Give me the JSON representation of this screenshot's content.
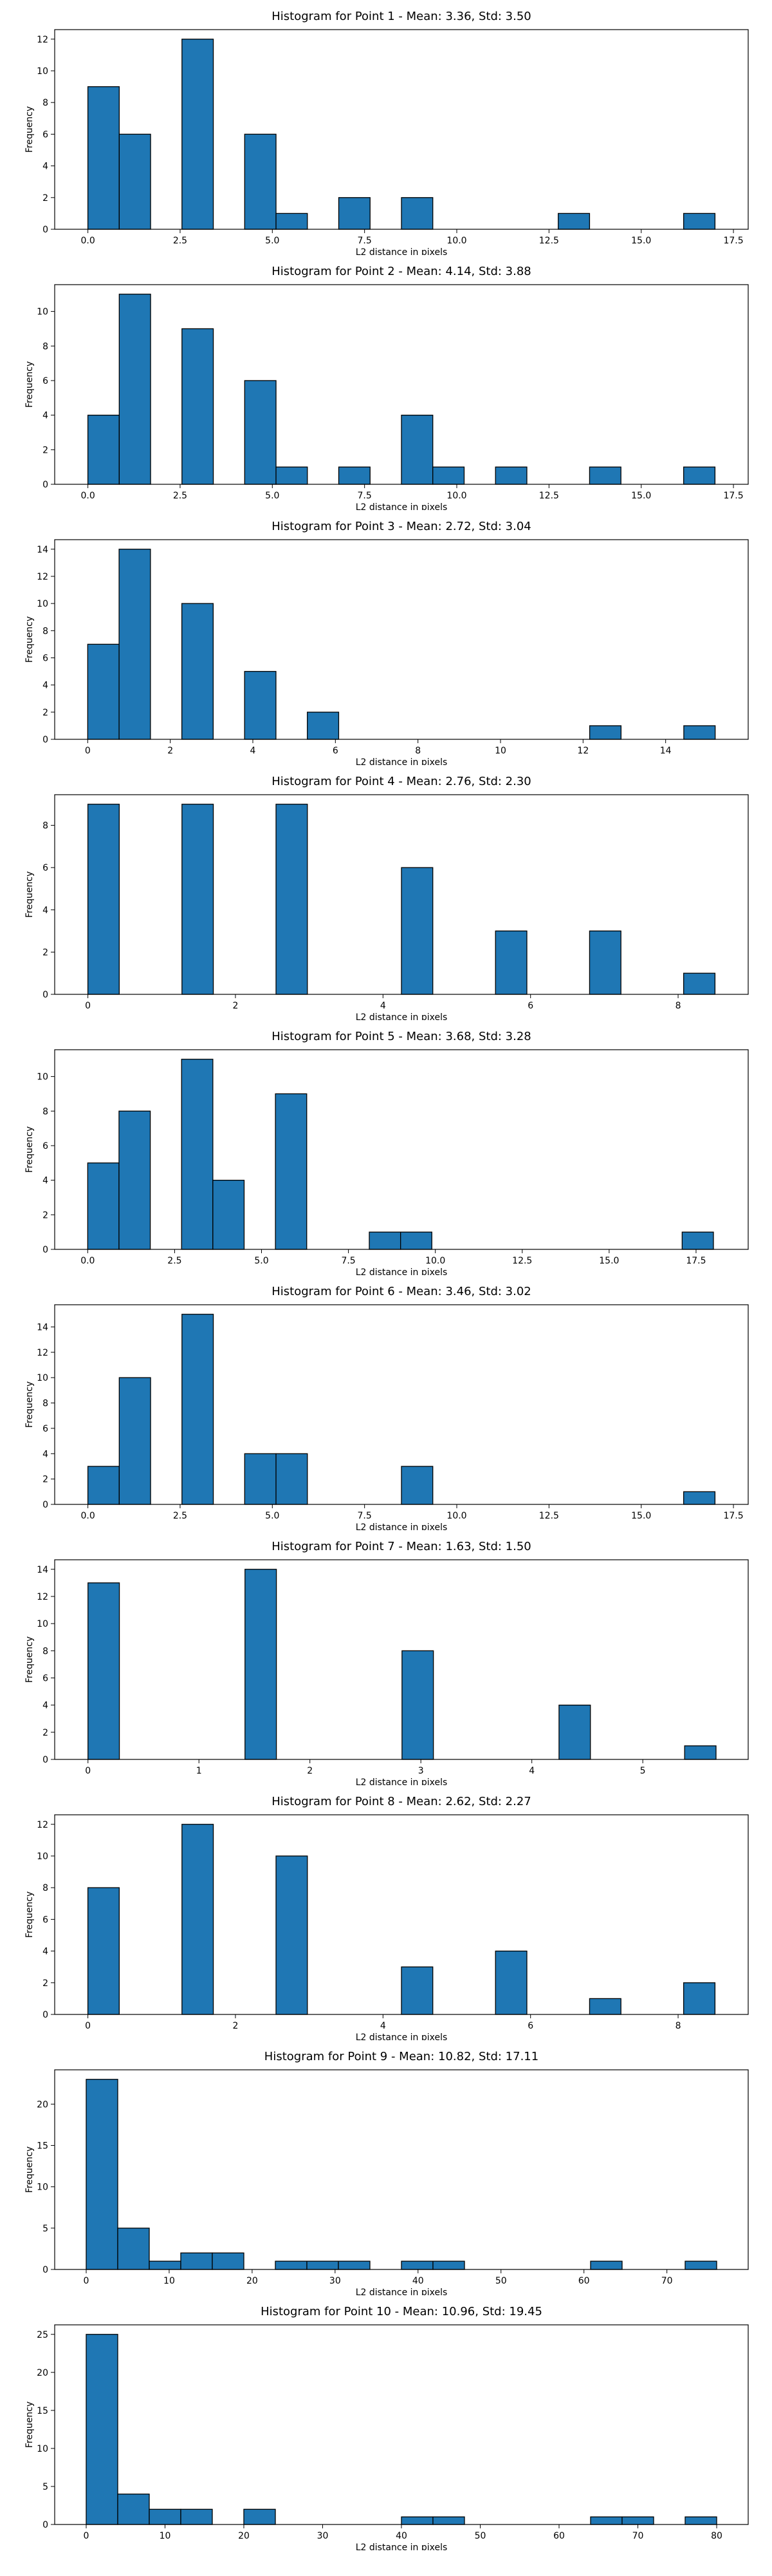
{
  "chart_data": [
    {
      "type": "bar",
      "title": "Histogram for Point 1 - Mean: 3.36, Std: 3.50",
      "xlabel": "L2 distance in pixels",
      "ylabel": "Frequency",
      "xlim": [
        -0.9,
        17.9
      ],
      "ylim": [
        0,
        12.6
      ],
      "xticks": [
        0,
        2.5,
        5,
        7.5,
        10,
        12.5,
        15,
        17.5
      ],
      "xtick_labels": [
        "0.0",
        "2.5",
        "5.0",
        "7.5",
        "10.0",
        "12.5",
        "15.0",
        "17.5"
      ],
      "yticks": [
        0,
        2,
        4,
        6,
        8,
        10,
        12
      ],
      "bin_edges": [
        0.0,
        0.85,
        1.7,
        2.55,
        3.4,
        4.25,
        5.1,
        5.95,
        6.8,
        7.65,
        8.5,
        9.35,
        10.2,
        11.05,
        11.9,
        12.75,
        13.6,
        14.45,
        15.3,
        16.15,
        17.0
      ],
      "counts": [
        9,
        6,
        0,
        12,
        0,
        6,
        1,
        0,
        2,
        0,
        2,
        0,
        0,
        0,
        0,
        1,
        0,
        0,
        0,
        1
      ],
      "grid": false
    },
    {
      "type": "bar",
      "title": "Histogram for Point 2 - Mean: 4.14, Std: 3.88",
      "xlabel": "L2 distance in pixels",
      "ylabel": "Frequency",
      "xlim": [
        -0.9,
        17.9
      ],
      "ylim": [
        0,
        11.55
      ],
      "xticks": [
        0,
        2.5,
        5,
        7.5,
        10,
        12.5,
        15,
        17.5
      ],
      "xtick_labels": [
        "0.0",
        "2.5",
        "5.0",
        "7.5",
        "10.0",
        "12.5",
        "15.0",
        "17.5"
      ],
      "yticks": [
        0,
        2,
        4,
        6,
        8,
        10
      ],
      "bin_edges": [
        0.0,
        0.85,
        1.7,
        2.55,
        3.4,
        4.25,
        5.1,
        5.95,
        6.8,
        7.65,
        8.5,
        9.35,
        10.2,
        11.05,
        11.9,
        12.75,
        13.6,
        14.45,
        15.3,
        16.15,
        17.0
      ],
      "counts": [
        4,
        11,
        0,
        9,
        0,
        6,
        1,
        0,
        1,
        0,
        4,
        1,
        0,
        1,
        0,
        0,
        1,
        0,
        0,
        1
      ],
      "grid": false
    },
    {
      "type": "bar",
      "title": "Histogram for Point 3 - Mean: 2.72, Std: 3.04",
      "xlabel": "L2 distance in pixels",
      "ylabel": "Frequency",
      "xlim": [
        -0.8,
        16.0
      ],
      "ylim": [
        0,
        14.7
      ],
      "xticks": [
        0,
        2,
        4,
        6,
        8,
        10,
        12,
        14
      ],
      "xtick_labels": [
        "0",
        "2",
        "4",
        "6",
        "8",
        "10",
        "12",
        "14"
      ],
      "yticks": [
        0,
        2,
        4,
        6,
        8,
        10,
        12,
        14
      ],
      "bin_edges": [
        0.0,
        0.76,
        1.52,
        2.28,
        3.04,
        3.8,
        4.56,
        5.32,
        6.08,
        6.84,
        7.6,
        8.36,
        9.12,
        9.88,
        10.64,
        11.4,
        12.16,
        12.92,
        13.68,
        14.44,
        15.2
      ],
      "counts": [
        7,
        14,
        0,
        10,
        0,
        5,
        0,
        2,
        0,
        0,
        0,
        0,
        0,
        0,
        0,
        0,
        1,
        0,
        0,
        1
      ],
      "grid": false
    },
    {
      "type": "bar",
      "title": "Histogram for Point 4 - Mean: 2.76, Std: 2.30",
      "xlabel": "L2 distance in pixels",
      "ylabel": "Frequency",
      "xlim": [
        -0.45,
        8.95
      ],
      "ylim": [
        0,
        9.45
      ],
      "xticks": [
        0,
        2,
        4,
        6,
        8
      ],
      "xtick_labels": [
        "0",
        "2",
        "4",
        "6",
        "8"
      ],
      "yticks": [
        0,
        2,
        4,
        6,
        8
      ],
      "bin_edges": [
        0.0,
        0.425,
        0.85,
        1.275,
        1.7,
        2.125,
        2.55,
        2.975,
        3.4,
        3.825,
        4.25,
        4.675,
        5.1,
        5.525,
        5.95,
        6.375,
        6.8,
        7.225,
        7.65,
        8.075,
        8.5
      ],
      "counts": [
        9,
        0,
        0,
        9,
        0,
        0,
        9,
        0,
        0,
        0,
        6,
        0,
        0,
        3,
        0,
        0,
        3,
        0,
        0,
        1
      ],
      "grid": false
    },
    {
      "type": "bar",
      "title": "Histogram for Point 5 - Mean: 3.68, Std: 3.28",
      "xlabel": "L2 distance in pixels",
      "ylabel": "Frequency",
      "xlim": [
        -0.95,
        19.0
      ],
      "ylim": [
        0,
        11.55
      ],
      "xticks": [
        0,
        2.5,
        5,
        7.5,
        10,
        12.5,
        15,
        17.5
      ],
      "xtick_labels": [
        "0.0",
        "2.5",
        "5.0",
        "7.5",
        "10.0",
        "12.5",
        "15.0",
        "17.5"
      ],
      "yticks": [
        0,
        2,
        4,
        6,
        8,
        10
      ],
      "bin_edges": [
        0.0,
        0.9,
        1.8,
        2.7,
        3.6,
        4.5,
        5.4,
        6.3,
        7.2,
        8.1,
        9.0,
        9.9,
        10.8,
        11.7,
        12.6,
        13.5,
        14.4,
        15.3,
        16.2,
        17.1,
        18.0
      ],
      "counts": [
        5,
        8,
        0,
        11,
        4,
        0,
        9,
        0,
        0,
        1,
        1,
        0,
        0,
        0,
        0,
        0,
        0,
        0,
        0,
        1
      ],
      "grid": false
    },
    {
      "type": "bar",
      "title": "Histogram for Point 6 - Mean: 3.46, Std: 3.02",
      "xlabel": "L2 distance in pixels",
      "ylabel": "Frequency",
      "xlim": [
        -0.9,
        17.9
      ],
      "ylim": [
        0,
        15.75
      ],
      "xticks": [
        0,
        2.5,
        5,
        7.5,
        10,
        12.5,
        15,
        17.5
      ],
      "xtick_labels": [
        "0.0",
        "2.5",
        "5.0",
        "7.5",
        "10.0",
        "12.5",
        "15.0",
        "17.5"
      ],
      "yticks": [
        0,
        2,
        4,
        6,
        8,
        10,
        12,
        14
      ],
      "bin_edges": [
        0.0,
        0.85,
        1.7,
        2.55,
        3.4,
        4.25,
        5.1,
        5.95,
        6.8,
        7.65,
        8.5,
        9.35,
        10.2,
        11.05,
        11.9,
        12.75,
        13.6,
        14.45,
        15.3,
        16.15,
        17.0
      ],
      "counts": [
        3,
        10,
        0,
        15,
        0,
        4,
        4,
        0,
        0,
        0,
        3,
        0,
        0,
        0,
        0,
        0,
        0,
        0,
        0,
        1
      ],
      "grid": false
    },
    {
      "type": "bar",
      "title": "Histogram for Point 7 - Mean: 1.63, Std: 1.50",
      "xlabel": "L2 distance in pixels",
      "ylabel": "Frequency",
      "xlim": [
        -0.3,
        5.95
      ],
      "ylim": [
        0,
        14.7
      ],
      "xticks": [
        0,
        1,
        2,
        3,
        4,
        5
      ],
      "xtick_labels": [
        "0",
        "1",
        "2",
        "3",
        "4",
        "5"
      ],
      "yticks": [
        0,
        2,
        4,
        6,
        8,
        10,
        12,
        14
      ],
      "bin_edges": [
        0.0,
        0.283,
        0.566,
        0.849,
        1.132,
        1.415,
        1.698,
        1.981,
        2.264,
        2.547,
        2.83,
        3.113,
        3.396,
        3.679,
        3.962,
        4.245,
        4.528,
        4.811,
        5.094,
        5.377,
        5.66
      ],
      "counts": [
        13,
        0,
        0,
        0,
        0,
        14,
        0,
        0,
        0,
        0,
        8,
        0,
        0,
        0,
        0,
        4,
        0,
        0,
        0,
        1
      ],
      "grid": false
    },
    {
      "type": "bar",
      "title": "Histogram for Point 8 - Mean: 2.62, Std: 2.27",
      "xlabel": "L2 distance in pixels",
      "ylabel": "Frequency",
      "xlim": [
        -0.45,
        8.95
      ],
      "ylim": [
        0,
        12.6
      ],
      "xticks": [
        0,
        2,
        4,
        6,
        8
      ],
      "xtick_labels": [
        "0",
        "2",
        "4",
        "6",
        "8"
      ],
      "yticks": [
        0,
        2,
        4,
        6,
        8,
        10,
        12
      ],
      "bin_edges": [
        0.0,
        0.425,
        0.85,
        1.275,
        1.7,
        2.125,
        2.55,
        2.975,
        3.4,
        3.825,
        4.25,
        4.675,
        5.1,
        5.525,
        5.95,
        6.375,
        6.8,
        7.225,
        7.65,
        8.075,
        8.5
      ],
      "counts": [
        8,
        0,
        0,
        12,
        0,
        0,
        10,
        0,
        0,
        0,
        3,
        0,
        0,
        4,
        0,
        0,
        1,
        0,
        0,
        2
      ],
      "grid": false
    },
    {
      "type": "bar",
      "title": "Histogram for Point 9 - Mean: 10.82, Std: 17.11",
      "xlabel": "L2 distance in pixels",
      "ylabel": "Frequency",
      "xlim": [
        -3.8,
        79.8
      ],
      "ylim": [
        0,
        24.15
      ],
      "xticks": [
        0,
        10,
        20,
        30,
        40,
        50,
        60,
        70
      ],
      "xtick_labels": [
        "0",
        "10",
        "20",
        "30",
        "40",
        "50",
        "60",
        "70"
      ],
      "yticks": [
        0,
        5,
        10,
        15,
        20
      ],
      "bin_edges": [
        0.0,
        3.8,
        7.6,
        11.4,
        15.2,
        19.0,
        22.8,
        26.6,
        30.4,
        34.2,
        38.0,
        41.8,
        45.6,
        49.4,
        53.2,
        57.0,
        60.8,
        64.6,
        68.4,
        72.2,
        76.0
      ],
      "counts": [
        23,
        5,
        1,
        2,
        2,
        0,
        1,
        1,
        1,
        0,
        1,
        1,
        0,
        0,
        0,
        0,
        1,
        0,
        0,
        1
      ],
      "grid": false
    },
    {
      "type": "bar",
      "title": "Histogram for Point 10 - Mean: 10.96, Std: 19.45",
      "xlabel": "L2 distance in pixels",
      "ylabel": "Frequency",
      "xlim": [
        -4.0,
        84.0
      ],
      "ylim": [
        0,
        26.25
      ],
      "xticks": [
        0,
        10,
        20,
        30,
        40,
        50,
        60,
        70,
        80
      ],
      "xtick_labels": [
        "0",
        "10",
        "20",
        "30",
        "40",
        "50",
        "60",
        "70",
        "80"
      ],
      "yticks": [
        0,
        5,
        10,
        15,
        20,
        25
      ],
      "bin_edges": [
        0.0,
        4.0,
        8.0,
        12.0,
        16.0,
        20.0,
        24.0,
        28.0,
        32.0,
        36.0,
        40.0,
        44.0,
        48.0,
        52.0,
        56.0,
        60.0,
        64.0,
        68.0,
        72.0,
        76.0,
        80.0
      ],
      "counts": [
        25,
        4,
        2,
        2,
        0,
        2,
        0,
        0,
        0,
        0,
        1,
        1,
        0,
        0,
        0,
        0,
        1,
        1,
        0,
        1
      ],
      "grid": false
    }
  ]
}
